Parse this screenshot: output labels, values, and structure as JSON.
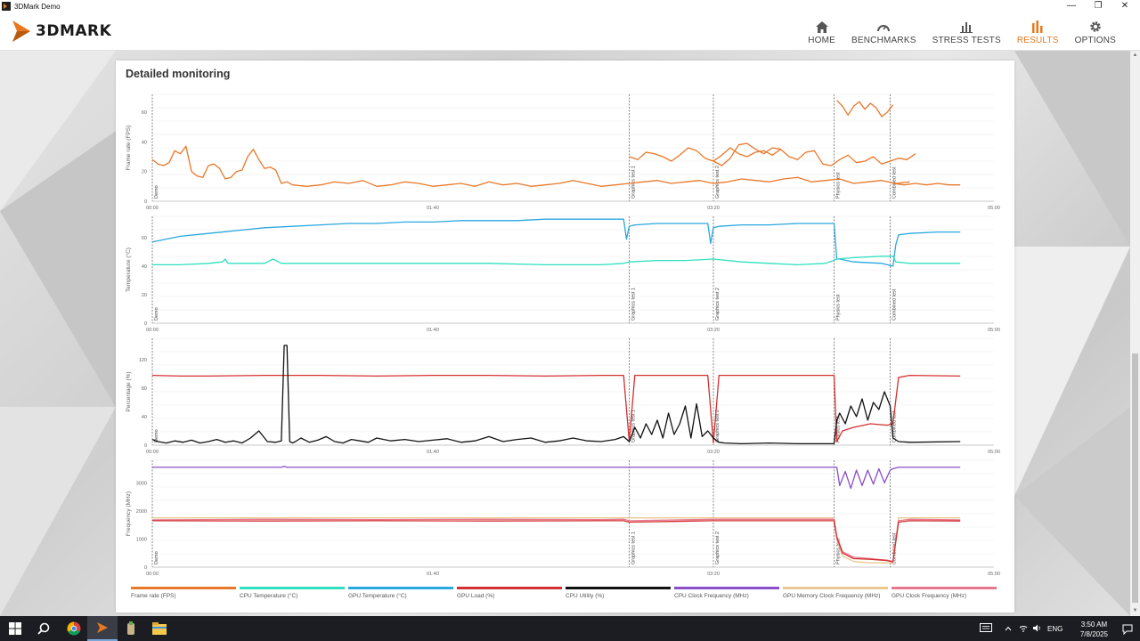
{
  "window": {
    "title": "3DMark Demo",
    "controls": {
      "minimize": "—",
      "restore": "❐",
      "close": "✕"
    }
  },
  "header": {
    "logo_text": "3DMARK",
    "nav": [
      {
        "label": "HOME",
        "icon": "home-icon"
      },
      {
        "label": "BENCHMARKS",
        "icon": "gauge-icon"
      },
      {
        "label": "STRESS TESTS",
        "icon": "bar-chart-icon"
      },
      {
        "label": "RESULTS",
        "icon": "results-icon",
        "active": true
      },
      {
        "label": "OPTIONS",
        "icon": "gear-icon"
      }
    ],
    "accent_color": "#e8781e"
  },
  "card": {
    "title": "Detailed monitoring"
  },
  "chart_data": [
    {
      "type": "line",
      "ylabel": "Frame rate (FPS)",
      "yticks": [
        "0",
        "20",
        "40",
        "60"
      ],
      "ylim": [
        0,
        72
      ],
      "xticks": [
        "00:00",
        "01:40",
        "03:20",
        "05:00"
      ],
      "xlim": [
        0,
        300
      ],
      "sections": [
        "Demo",
        "Graphics test 1",
        "Graphics test 2",
        "Physics test",
        "Combined test"
      ],
      "series": [
        {
          "name": "Frame rate (FPS)",
          "color": "#e8782a",
          "x": [
            0,
            2,
            4,
            6,
            8,
            10,
            12,
            14,
            16,
            18,
            20,
            22,
            24,
            26,
            28,
            30,
            32,
            34,
            36,
            38,
            40,
            42,
            44,
            46,
            48,
            50,
            55,
            60,
            65,
            70,
            75,
            80,
            85,
            90,
            95,
            100,
            105,
            110,
            115,
            120,
            125,
            130,
            135,
            140,
            145,
            150,
            155,
            160,
            165,
            170,
            175,
            180,
            185,
            190,
            195,
            200,
            205,
            210,
            215,
            220,
            225,
            230,
            235,
            240,
            245,
            250,
            255,
            260,
            265,
            270
          ],
          "values": [
            28,
            25,
            24,
            26,
            34,
            32,
            37,
            20,
            17,
            16,
            24,
            25,
            22,
            15,
            16,
            20,
            21,
            30,
            35,
            28,
            22,
            23,
            21,
            12,
            13,
            11,
            10,
            11,
            13,
            12,
            14,
            10,
            11,
            13,
            12,
            10,
            11,
            12,
            10,
            13,
            11,
            12,
            10,
            11,
            12,
            14,
            12,
            10,
            11,
            12,
            13,
            14,
            12,
            13,
            14,
            12,
            13,
            15,
            14,
            13,
            15,
            16,
            13,
            14,
            15,
            12,
            13,
            14,
            12,
            13
          ]
        },
        {
          "name": "Frame rate (FPS)",
          "color": "#e8782a",
          "x": [
            170,
            173,
            176,
            179,
            182,
            185,
            188,
            191,
            194,
            197,
            200,
            203,
            206,
            209,
            212,
            215,
            218,
            221,
            224
          ],
          "values": [
            30,
            28,
            33,
            32,
            30,
            27,
            31,
            36,
            34,
            29,
            27,
            31,
            36,
            32,
            30,
            33,
            34,
            31,
            35
          ]
        },
        {
          "name": "Frame rate (FPS)",
          "color": "#e8782a",
          "x": [
            200,
            203,
            206,
            209,
            212,
            215,
            218,
            221,
            224,
            227,
            230,
            233,
            236,
            239,
            242,
            245,
            248,
            251,
            254,
            257,
            260,
            263,
            266,
            269,
            272
          ],
          "values": [
            27,
            24,
            29,
            38,
            39,
            35,
            32,
            36,
            35,
            30,
            28,
            33,
            34,
            25,
            24,
            28,
            31,
            26,
            27,
            30,
            25,
            27,
            29,
            28,
            32
          ]
        },
        {
          "name": "Frame rate (FPS)",
          "color": "#e8782a",
          "x": [
            244,
            246,
            248,
            250,
            252,
            254,
            256,
            258,
            260,
            262,
            264
          ],
          "values": [
            68,
            64,
            58,
            64,
            67,
            62,
            66,
            63,
            57,
            60,
            65
          ]
        },
        {
          "name": "Frame rate (FPS)",
          "color": "#e8782a",
          "x": [
            264,
            268,
            272,
            276,
            280,
            284,
            288
          ],
          "values": [
            12,
            11,
            12,
            11,
            12,
            11,
            11
          ]
        }
      ]
    },
    {
      "type": "line",
      "ylabel": "Temperature (°C)",
      "yticks": [
        "0",
        "20",
        "40",
        "60"
      ],
      "ylim": [
        0,
        75
      ],
      "xticks": [
        "00:00",
        "01:40",
        "03:20",
        "05:00"
      ],
      "xlim": [
        0,
        300
      ],
      "sections": [
        "Demo",
        "Graphics test 1",
        "Graphics test 2",
        "Physics test",
        "Combined test"
      ],
      "series": [
        {
          "name": "GPU Temperature (°C)",
          "color": "#29a8e0",
          "x": [
            0,
            10,
            20,
            30,
            40,
            50,
            60,
            70,
            80,
            90,
            100,
            110,
            120,
            130,
            140,
            150,
            160,
            168,
            169,
            170,
            172,
            180,
            190,
            198,
            199,
            200,
            202,
            210,
            220,
            230,
            240,
            243,
            244,
            245,
            250,
            260,
            264,
            265,
            266,
            270,
            280,
            288
          ],
          "values": [
            57,
            61,
            63,
            65,
            67,
            68,
            69,
            70,
            70,
            71,
            71,
            72,
            72,
            72,
            73,
            73,
            73,
            73,
            59,
            68,
            69,
            70,
            70,
            70,
            56,
            67,
            68,
            69,
            69,
            70,
            70,
            70,
            45,
            45,
            43,
            42,
            40,
            55,
            62,
            63,
            64,
            64
          ]
        },
        {
          "name": "CPU Temperature (°C)",
          "color": "#2ee0c0",
          "x": [
            0,
            10,
            20,
            25,
            26,
            27,
            30,
            40,
            43,
            44,
            46,
            50,
            60,
            80,
            100,
            120,
            140,
            160,
            168,
            170,
            180,
            190,
            200,
            210,
            220,
            230,
            240,
            244,
            250,
            260,
            264,
            265,
            270,
            288
          ],
          "values": [
            41,
            41,
            42,
            43,
            45,
            42,
            42,
            42,
            45,
            44,
            42,
            42,
            42,
            42,
            42,
            42,
            41,
            41,
            42,
            43,
            44,
            44,
            45,
            43,
            42,
            41,
            42,
            45,
            46,
            47,
            47,
            43,
            42,
            42
          ]
        }
      ]
    },
    {
      "type": "line",
      "ylabel": "Percentage (%)",
      "yticks": [
        "0",
        "40",
        "80",
        "120"
      ],
      "ylim": [
        0,
        150
      ],
      "xticks": [
        "00:00",
        "01:40",
        "03:20",
        "05:00"
      ],
      "xlim": [
        0,
        300
      ],
      "sections": [
        "Demo",
        "Graphics test 1",
        "Graphics test 2",
        "Physics test",
        "Combined test"
      ],
      "series": [
        {
          "name": "GPU Load (%)",
          "color": "#d43030",
          "x": [
            0,
            10,
            20,
            40,
            60,
            80,
            100,
            120,
            140,
            160,
            168,
            170,
            172,
            190,
            198,
            200,
            202,
            220,
            240,
            243,
            244,
            246,
            250,
            256,
            262,
            264,
            266,
            270,
            288
          ],
          "values": [
            98,
            97,
            97,
            98,
            98,
            97,
            98,
            98,
            97,
            98,
            98,
            5,
            98,
            98,
            98,
            3,
            98,
            98,
            98,
            98,
            5,
            20,
            25,
            30,
            28,
            30,
            95,
            98,
            97
          ]
        },
        {
          "name": "CPU Utility (%)",
          "color": "#111111",
          "x": [
            0,
            2,
            5,
            8,
            11,
            14,
            17,
            20,
            23,
            26,
            29,
            32,
            35,
            38,
            41,
            44,
            46,
            47,
            48,
            49,
            50,
            51,
            53,
            56,
            59,
            62,
            65,
            68,
            71,
            74,
            77,
            80,
            85,
            90,
            95,
            100,
            105,
            110,
            115,
            120,
            125,
            130,
            135,
            140,
            145,
            150,
            155,
            160,
            165,
            168,
            170,
            172,
            174,
            176,
            178,
            180,
            182,
            184,
            186,
            188,
            190,
            192,
            194,
            196,
            198,
            200,
            202,
            204,
            210,
            220,
            230,
            240,
            243,
            244,
            245,
            247,
            249,
            251,
            253,
            255,
            257,
            259,
            261,
            263,
            264,
            266,
            270,
            288
          ],
          "values": [
            8,
            5,
            3,
            6,
            4,
            7,
            3,
            5,
            8,
            4,
            6,
            3,
            10,
            20,
            5,
            4,
            6,
            140,
            140,
            5,
            3,
            5,
            10,
            4,
            7,
            12,
            5,
            3,
            8,
            6,
            4,
            10,
            6,
            8,
            5,
            7,
            9,
            4,
            6,
            12,
            5,
            8,
            10,
            4,
            6,
            10,
            6,
            5,
            8,
            12,
            5,
            25,
            10,
            30,
            15,
            35,
            10,
            45,
            15,
            30,
            55,
            10,
            58,
            12,
            20,
            10,
            4,
            3,
            2,
            3,
            2,
            2,
            2,
            35,
            45,
            30,
            55,
            40,
            65,
            35,
            60,
            50,
            75,
            55,
            10,
            5,
            4,
            5
          ]
        }
      ]
    },
    {
      "type": "line",
      "ylabel": "Frequency (MHz)",
      "yticks": [
        "0",
        "1000",
        "2000",
        "3000"
      ],
      "ylim": [
        0,
        3800
      ],
      "xticks": [
        "00:00",
        "01:40",
        "03:20",
        "05:00"
      ],
      "xlim": [
        0,
        300
      ],
      "sections": [
        "Demo",
        "Graphics test 1",
        "Graphics test 2",
        "Physics test",
        "Combined test"
      ],
      "series": [
        {
          "name": "CPU Clock Frequency (MHz)",
          "color": "#8a4fc9",
          "x": [
            0,
            20,
            40,
            46,
            47,
            48,
            60,
            80,
            100,
            120,
            140,
            160,
            168,
            170,
            190,
            200,
            210,
            230,
            240,
            243,
            244,
            245,
            247,
            249,
            251,
            253,
            255,
            257,
            259,
            261,
            263,
            264,
            266,
            270,
            288
          ],
          "values": [
            3550,
            3550,
            3550,
            3550,
            3580,
            3550,
            3550,
            3550,
            3550,
            3550,
            3550,
            3550,
            3550,
            3550,
            3550,
            3550,
            3550,
            3550,
            3550,
            3550,
            3550,
            2900,
            3400,
            2800,
            3450,
            2900,
            3450,
            2950,
            3500,
            3000,
            3450,
            3500,
            3550,
            3550,
            3550
          ]
        },
        {
          "name": "GPU Memory Clock Frequency (MHz)",
          "color": "#e8c890",
          "x": [
            0,
            40,
            80,
            120,
            160,
            168,
            170,
            200,
            240,
            243,
            244,
            246,
            250,
            256,
            262,
            264,
            266,
            270,
            288
          ],
          "values": [
            1750,
            1750,
            1750,
            1750,
            1750,
            1750,
            1750,
            1750,
            1750,
            1750,
            1000,
            400,
            200,
            150,
            150,
            150,
            1750,
            1750,
            1750
          ]
        },
        {
          "name": "GPU Clock Frequency (MHz)",
          "color": "#e87890",
          "x": [
            0,
            40,
            80,
            120,
            160,
            168,
            170,
            200,
            240,
            243,
            244,
            246,
            250,
            256,
            262,
            264,
            266,
            270,
            288
          ],
          "values": [
            1680,
            1700,
            1690,
            1700,
            1690,
            1700,
            1650,
            1700,
            1700,
            1700,
            1100,
            550,
            350,
            300,
            250,
            200,
            1650,
            1700,
            1680
          ]
        },
        {
          "name": "GPU Clock Frequency (MHz)",
          "color": "#d43030",
          "x": [
            0,
            40,
            80,
            120,
            160,
            168,
            170,
            200,
            240,
            243,
            244,
            246,
            250,
            256,
            262,
            264,
            266,
            270,
            288
          ],
          "values": [
            1650,
            1640,
            1650,
            1640,
            1650,
            1650,
            1600,
            1650,
            1650,
            1650,
            1050,
            500,
            300,
            280,
            230,
            180,
            1600,
            1650,
            1640
          ]
        }
      ]
    }
  ],
  "legend": [
    {
      "label": "Frame rate (FPS)",
      "color": "#e8782a"
    },
    {
      "label": "CPU Temperature (°C)",
      "color": "#2ee0c0"
    },
    {
      "label": "GPU Temperature (°C)",
      "color": "#29a8e0"
    },
    {
      "label": "GPU Load (%)",
      "color": "#d43030"
    },
    {
      "label": "CPU Utility (%)",
      "color": "#111111"
    },
    {
      "label": "CPU Clock Frequency (MHz)",
      "color": "#8a4fc9"
    },
    {
      "label": "GPU Memory Clock Frequency (MHz)",
      "color": "#e8c890"
    },
    {
      "label": "GPU Clock Frequency (MHz)",
      "color": "#e87890"
    }
  ],
  "taskbar": {
    "apps": [
      "windows-start-icon",
      "search-icon",
      "chrome-icon",
      "3dmark-icon",
      "app-icon",
      "file-explorer-icon"
    ],
    "tray_lang": "ENG",
    "time": "3:50 AM",
    "date": "7/8/2025"
  }
}
